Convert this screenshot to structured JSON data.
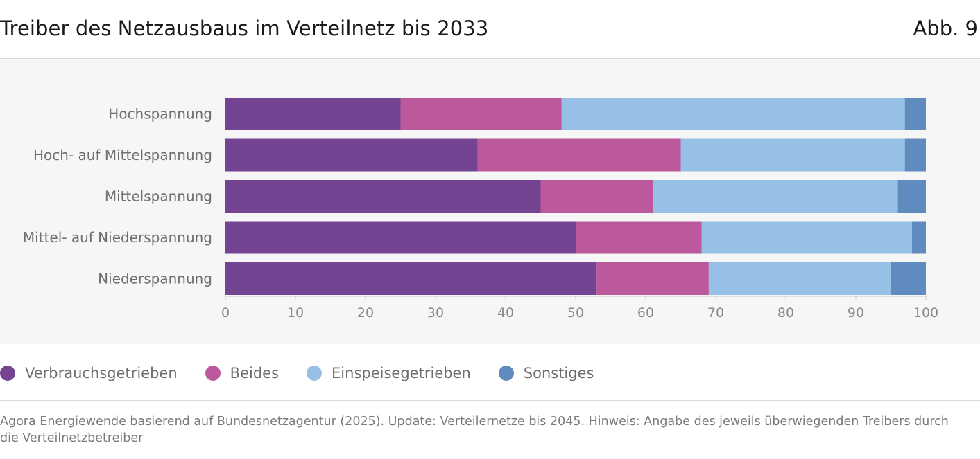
{
  "header": {
    "title": "Treiber des Netzausbaus im Verteilnetz bis 2033",
    "figure_label": "Abb. 9"
  },
  "chart_data": {
    "type": "bar",
    "orientation": "horizontal",
    "stacked": true,
    "categories": [
      "Hochspannung",
      "Hoch- auf Mittelspannung",
      "Mittelspannung",
      "Mittel- auf Niederspannung",
      "Niederspannung"
    ],
    "series": [
      {
        "name": "Verbrauchsgetrieben",
        "color": "#744493",
        "values": [
          25,
          36,
          45,
          50,
          53
        ]
      },
      {
        "name": "Beides",
        "color": "#bc599c",
        "values": [
          23,
          29,
          16,
          18,
          16
        ]
      },
      {
        "name": "Einspeisegetrieben",
        "color": "#96c0e6",
        "values": [
          49,
          32,
          35,
          30,
          26
        ]
      },
      {
        "name": "Sonstiges",
        "color": "#5f8bbf",
        "values": [
          3,
          3,
          4,
          2,
          5
        ]
      }
    ],
    "xlim": [
      0,
      100
    ],
    "xticks": [
      0,
      10,
      20,
      30,
      40,
      50,
      60,
      70,
      80,
      90,
      100
    ],
    "grid": false,
    "legend_position": "bottom"
  },
  "footer": {
    "source": "Agora Energiewende basierend auf  Bundesnetzagentur (2025). Update: Verteilernetze bis 2045. Hinweis: Angabe des jeweils überwiegenden Treibers durch die Verteilnetzbetreiber"
  }
}
